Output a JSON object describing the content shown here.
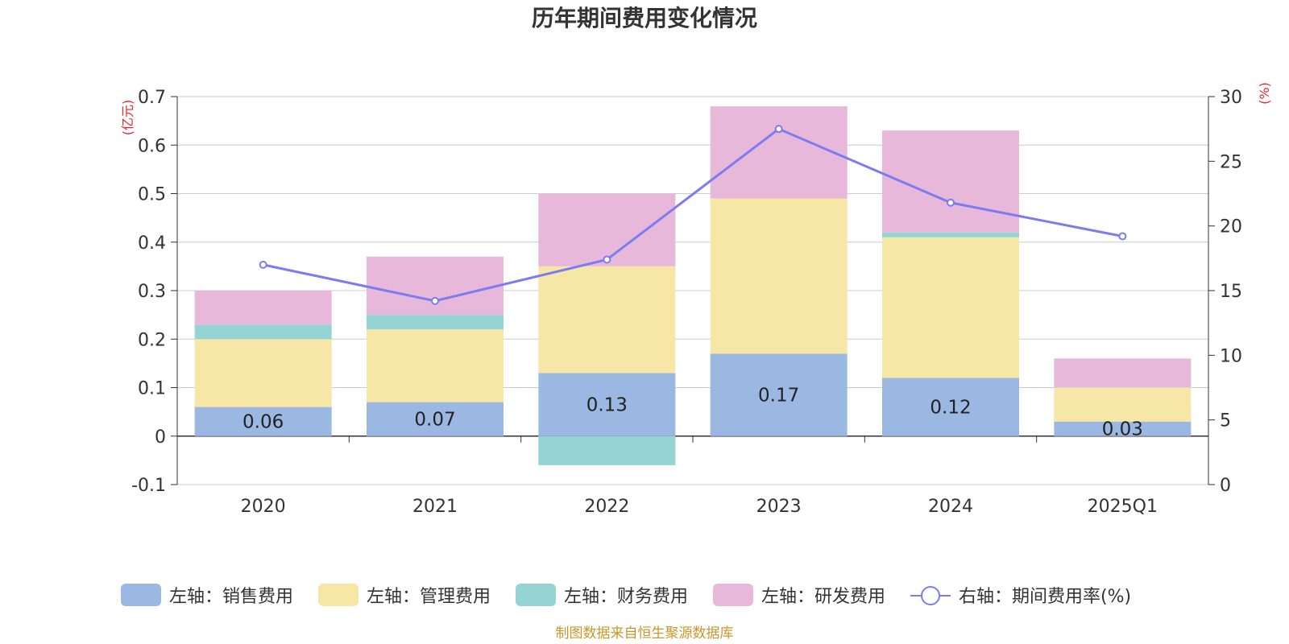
{
  "chart_data": {
    "type": "bar",
    "title": "历年期间费用变化情况",
    "left_unit": "(亿元)",
    "right_unit": "(%)",
    "categories": [
      "2020",
      "2021",
      "2022",
      "2023",
      "2024",
      "2025Q1"
    ],
    "series": [
      {
        "name": "左轴：销售费用",
        "type": "bar",
        "axis": "left",
        "stack": "total",
        "color": "#9bb8e2",
        "values": [
          0.06,
          0.07,
          0.13,
          0.17,
          0.12,
          0.03
        ]
      },
      {
        "name": "左轴：管理费用",
        "type": "bar",
        "axis": "left",
        "stack": "total",
        "color": "#f7e7a6",
        "values": [
          0.14,
          0.15,
          0.22,
          0.32,
          0.29,
          0.07
        ]
      },
      {
        "name": "左轴：财务费用",
        "type": "bar",
        "axis": "left",
        "stack": "total",
        "color": "#94d4d4",
        "values": [
          0.03,
          0.03,
          -0.06,
          0.0,
          0.01,
          0.0
        ]
      },
      {
        "name": "左轴：研发费用",
        "type": "bar",
        "axis": "left",
        "stack": "total",
        "color": "#e8b8da",
        "values": [
          0.07,
          0.12,
          0.15,
          0.19,
          0.21,
          0.06
        ]
      },
      {
        "name": "右轴：期间费用率(%)",
        "type": "line",
        "axis": "right",
        "color": "#7b7cf0",
        "values": [
          17.0,
          14.2,
          17.4,
          27.5,
          21.8,
          19.2
        ]
      }
    ],
    "data_labels": [
      "0.06",
      "0.07",
      "0.13",
      "0.17",
      "0.12",
      "0.03"
    ],
    "ylim_left": [
      -0.1,
      0.7
    ],
    "yticks_left": [
      "-0.1",
      "0",
      "0.1",
      "0.2",
      "0.3",
      "0.4",
      "0.5",
      "0.6",
      "0.7"
    ],
    "ylim_right": [
      0,
      30
    ],
    "yticks_right": [
      "0",
      "5",
      "10",
      "15",
      "20",
      "25",
      "30"
    ],
    "grid": true,
    "legend_position": "bottom"
  },
  "source": "制图数据来自恒生聚源数据库"
}
